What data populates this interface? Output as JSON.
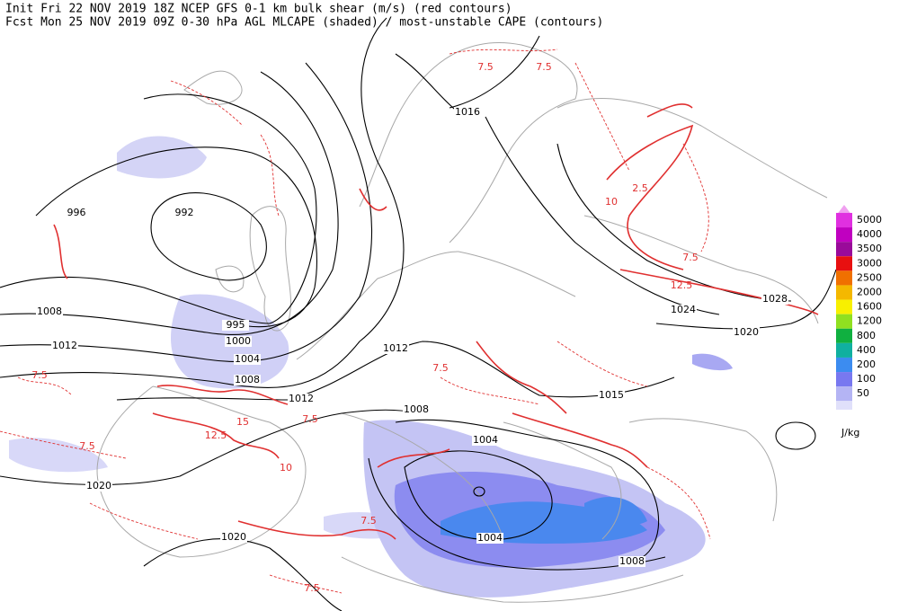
{
  "header": {
    "line1": "Init  Fri 22 NOV 2019 18Z   NCEP GFS 0-1 km bulk shear (m/s) (red contours)",
    "line2": "Fcst Mon 25 NOV 2019 09Z  0-30 hPa AGL MLCAPE (shaded) / most-unstable CAPE (contours)"
  },
  "legend": {
    "top_color": "#f0a0f0",
    "items": [
      {
        "label": "5000",
        "color": "#e030e0"
      },
      {
        "label": "4000",
        "color": "#c000c0"
      },
      {
        "label": "3500",
        "color": "#9a0a9a"
      },
      {
        "label": "3000",
        "color": "#e81010"
      },
      {
        "label": "2500",
        "color": "#f07000"
      },
      {
        "label": "2000",
        "color": "#f4b800"
      },
      {
        "label": "1600",
        "color": "#f8f000"
      },
      {
        "label": "1200",
        "color": "#90e020"
      },
      {
        "label": "800",
        "color": "#10b040"
      },
      {
        "label": "400",
        "color": "#10b0a0"
      },
      {
        "label": "200",
        "color": "#3c8cf0"
      },
      {
        "label": "100",
        "color": "#7878f0"
      },
      {
        "label": "50",
        "color": "#b4b4f4"
      }
    ],
    "extra_color": "#e0e0fa",
    "unit": "J/kg"
  },
  "isobar_labels": [
    "996",
    "992",
    "1016",
    "1008",
    "995",
    "1000",
    "1012",
    "1004",
    "1008",
    "1012",
    "1012",
    "1008",
    "1004",
    "1020",
    "1020",
    "1004",
    "1008",
    "1015",
    "1024",
    "1028",
    "1020"
  ],
  "shear_labels": [
    "7.5",
    "7.5",
    "7.5",
    "7.5",
    "7.5",
    "7.5",
    "10",
    "12.5",
    "15",
    "2.5",
    "7.5",
    "10",
    "12.5",
    "7.5",
    "7.5"
  ]
}
